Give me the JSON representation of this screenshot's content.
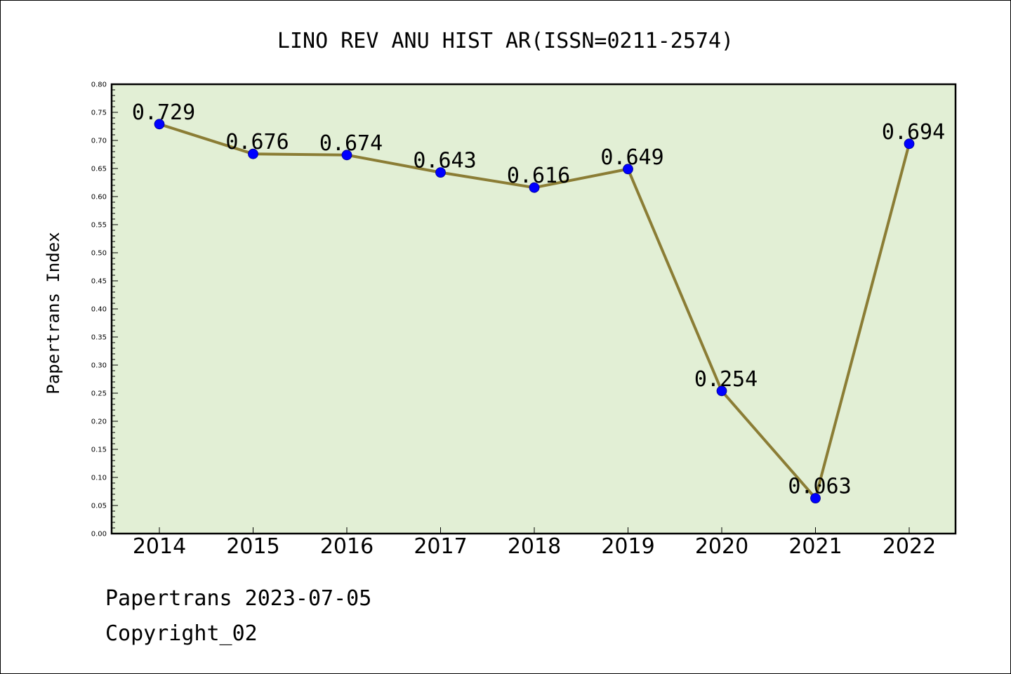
{
  "chart_data": {
    "type": "line",
    "title": "LINO REV ANU HIST AR(ISSN=0211-2574)",
    "ylabel": "Papertrans Index",
    "xlabel": "",
    "categories": [
      "2014",
      "2015",
      "2016",
      "2017",
      "2018",
      "2019",
      "2020",
      "2021",
      "2022"
    ],
    "series": [
      {
        "values": [
          0.729,
          0.676,
          0.674,
          0.643,
          0.616,
          0.649,
          0.254,
          0.063,
          0.694
        ]
      }
    ],
    "data_labels": [
      "0.729",
      "0.676",
      "0.674",
      "0.643",
      "0.616",
      "0.649",
      "0.254",
      "0.063",
      "0.694"
    ],
    "ylim": [
      0,
      0.8
    ],
    "yticks": [
      "0.00",
      "0.05",
      "0.10",
      "0.15",
      "0.20",
      "0.25",
      "0.30",
      "0.35",
      "0.40",
      "0.45",
      "0.50",
      "0.55",
      "0.60",
      "0.65",
      "0.70",
      "0.75",
      "0.80"
    ],
    "grid": false,
    "legend": "none",
    "colors": {
      "plot_background": "#e2efd5",
      "line": "#8b7d35",
      "marker": "#0000ff"
    }
  },
  "footer": {
    "line1": "Papertrans 2023-07-05",
    "line2": "Copyright_02"
  }
}
